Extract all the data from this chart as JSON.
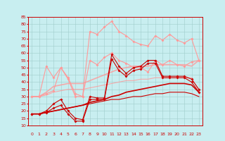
{
  "x": [
    0,
    1,
    2,
    3,
    4,
    5,
    6,
    7,
    8,
    9,
    10,
    11,
    12,
    13,
    14,
    15,
    16,
    17,
    18,
    19,
    20,
    21,
    22,
    23
  ],
  "background_color": "#c8eef0",
  "grid_color": "#a0cccc",
  "xlabel_color": "#cc0000",
  "tick_color": "#cc0000",
  "ylim": [
    10,
    85
  ],
  "xlim": [
    -0.5,
    23.5
  ],
  "yticks": [
    10,
    15,
    20,
    25,
    30,
    35,
    40,
    45,
    50,
    55,
    60,
    65,
    70,
    75,
    80,
    85
  ],
  "lines": [
    {
      "color": "#ff9999",
      "values": [
        30,
        30,
        51,
        43,
        50,
        42,
        30,
        30,
        75,
        73,
        78,
        82,
        75,
        72,
        68,
        66,
        65,
        72,
        69,
        73,
        69,
        67,
        70,
        55
      ],
      "marker": "D",
      "markersize": 2,
      "linewidth": 0.8,
      "alpha": 1.0
    },
    {
      "color": "#ff9999",
      "values": [
        30,
        30,
        32,
        34,
        50,
        43,
        32,
        30,
        55,
        52,
        57,
        60,
        55,
        53,
        50,
        50,
        47,
        55,
        52,
        55,
        52,
        51,
        54,
        55
      ],
      "marker": "D",
      "markersize": 2,
      "linewidth": 0.8,
      "alpha": 1.0
    },
    {
      "color": "#ff9999",
      "values": [
        30,
        30,
        33,
        37,
        38,
        39,
        39,
        39,
        41,
        43,
        45,
        47,
        49,
        50,
        51,
        51,
        51,
        52,
        52,
        52,
        52,
        52,
        51,
        55
      ],
      "marker": null,
      "linewidth": 1.2,
      "alpha": 0.8
    },
    {
      "color": "#ff9999",
      "values": [
        30,
        30,
        31,
        33,
        34,
        35,
        35,
        35,
        36,
        37,
        38,
        39,
        40,
        41,
        41,
        42,
        42,
        43,
        43,
        43,
        43,
        43,
        43,
        34
      ],
      "marker": null,
      "linewidth": 0.8,
      "alpha": 0.8
    },
    {
      "color": "#cc0000",
      "values": [
        18,
        18,
        20,
        25,
        28,
        20,
        15,
        14,
        30,
        29,
        29,
        59,
        51,
        46,
        50,
        51,
        55,
        55,
        44,
        44,
        44,
        44,
        42,
        35
      ],
      "marker": "D",
      "markersize": 2,
      "linewidth": 0.8,
      "alpha": 1.0
    },
    {
      "color": "#cc0000",
      "values": [
        18,
        18,
        19,
        22,
        24,
        18,
        13,
        13,
        28,
        28,
        28,
        56,
        48,
        44,
        48,
        49,
        53,
        53,
        43,
        43,
        43,
        43,
        40,
        33
      ],
      "marker": "D",
      "markersize": 2,
      "linewidth": 0.8,
      "alpha": 1.0
    },
    {
      "color": "#cc0000",
      "values": [
        18,
        18,
        19,
        20,
        21,
        22,
        23,
        24,
        26,
        27,
        28,
        30,
        31,
        33,
        34,
        35,
        36,
        37,
        38,
        39,
        39,
        39,
        38,
        33
      ],
      "marker": null,
      "linewidth": 1.2,
      "alpha": 1.0
    },
    {
      "color": "#cc0000",
      "values": [
        18,
        18,
        19,
        20,
        21,
        22,
        23,
        24,
        25,
        26,
        27,
        28,
        28,
        29,
        30,
        30,
        31,
        32,
        32,
        33,
        33,
        33,
        32,
        30
      ],
      "marker": null,
      "linewidth": 0.8,
      "alpha": 1.0
    }
  ]
}
